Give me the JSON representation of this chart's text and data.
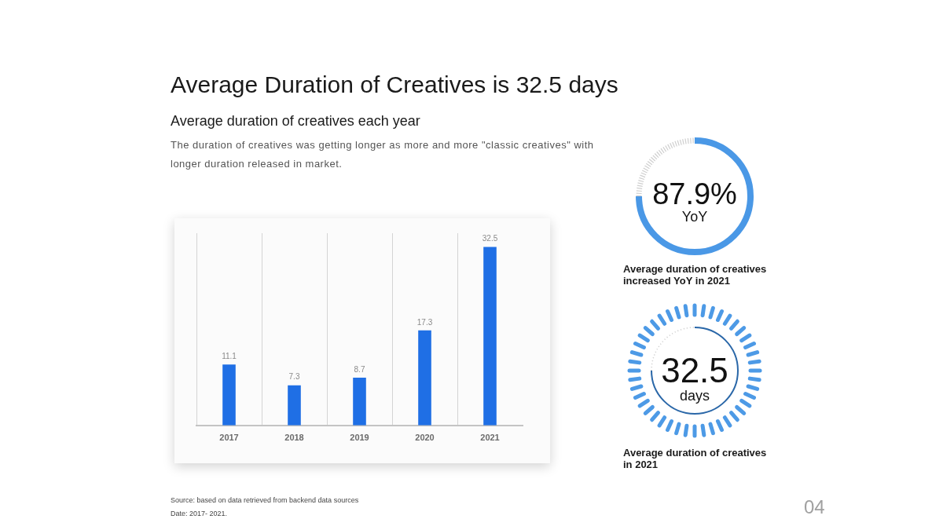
{
  "chart_data": [
    {
      "type": "bar",
      "title": "Average Duration of Creatives is 32.5 days",
      "subtitle": "Average duration of creatives each year",
      "categories": [
        "2017",
        "2018",
        "2019",
        "2020",
        "2021"
      ],
      "values": [
        11.1,
        7.3,
        8.7,
        17.3,
        32.5
      ],
      "color": "#1f6fe5",
      "data_labels": true,
      "grid": "x",
      "tick_labels": "x",
      "annotations": [
        "The duration of creatives was getting longer as more and more \"classic creatives\" with longer duration released in market.",
        "Source: based on data retrieved from backend data sources",
        "Date: 2017- 2021.",
        "04"
      ]
    },
    {
      "type": "other",
      "title": "87.9%",
      "subtitle": "YoY",
      "annotations": [
        "Average duration of creatives increased YoY in 2021"
      ]
    },
    {
      "type": "other",
      "title": "32.5",
      "subtitle": "days",
      "annotations": [
        "Average duration of creatives in 2021"
      ]
    }
  ]
}
